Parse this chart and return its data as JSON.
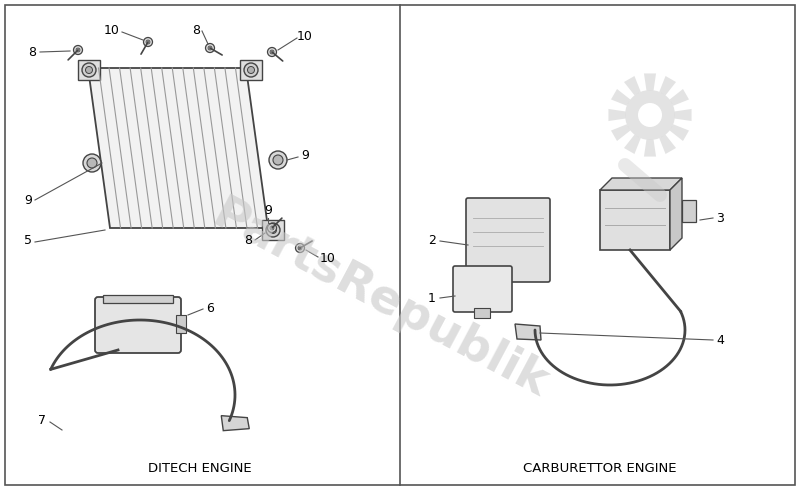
{
  "bg_color": "#ffffff",
  "border_color": "#555555",
  "line_color": "#444444",
  "text_color": "#000000",
  "watermark_color": "#c8c8c8",
  "left_label": "DITECH ENGINE",
  "right_label": "CARBURETTOR ENGINE",
  "fig_width": 8.0,
  "fig_height": 4.9,
  "dpi": 100
}
